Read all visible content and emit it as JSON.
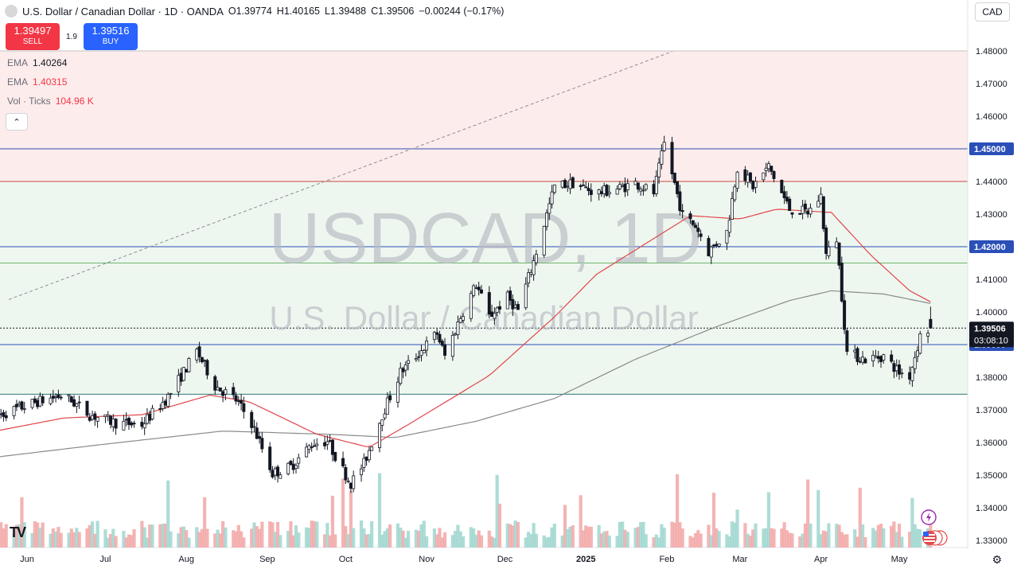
{
  "header": {
    "title": "U.S. Dollar / Canadian Dollar · 1D · OANDA",
    "open_label": "O",
    "open": "1.39774",
    "high_label": "H",
    "high": "1.40165",
    "low_label": "L",
    "low": "1.39488",
    "close_label": "C",
    "close": "1.39506",
    "change": "−0.00244 (−0.17%)",
    "currency": "CAD"
  },
  "trade": {
    "sell_price": "1.39497",
    "sell_label": "SELL",
    "spread": "1.9",
    "buy_price": "1.39516",
    "buy_label": "BUY"
  },
  "indicators": [
    {
      "name": "EMA",
      "value": "1.40264"
    },
    {
      "name": "EMA",
      "value": "1.40315"
    },
    {
      "name": "Vol · Ticks",
      "value": "104.96 K"
    }
  ],
  "watermark": {
    "line1": "USDCAD, 1D",
    "line2": "U.S. Dollar / Canadian Dollar"
  },
  "countdown": "03:08:10",
  "colors": {
    "up": "#131722",
    "down": "#131722",
    "ema_short": "#e0464a",
    "ema_long": "#8a8a8a",
    "level_blue": "#2a4fb8",
    "level_red": "#c74a43",
    "level_green": "#6fb36f",
    "zone_red": "#fdecec",
    "zone_green": "#eef7ef",
    "zone_teal": "#eaf5f3",
    "vol_up": "#9fd6cf",
    "vol_down": "#f2a7a7"
  },
  "chart_data": {
    "type": "candlestick",
    "symbol": "USDCAD",
    "timeframe": "1D",
    "y_axis_ticks": [
      "1.48000",
      "1.47000",
      "1.46000",
      "1.45000",
      "1.44000",
      "1.43000",
      "1.42000",
      "1.41000",
      "1.40000",
      "1.39000",
      "1.38000",
      "1.37000",
      "1.36000",
      "1.35000",
      "1.34000",
      "1.33000"
    ],
    "ylim": [
      1.3295,
      1.4818
    ],
    "x_axis_labels": [
      "Jun",
      "Jul",
      "Aug",
      "Sep",
      "Oct",
      "Nov",
      "Dec",
      "2025",
      "Feb",
      "Mar",
      "Apr",
      "May"
    ],
    "levels": [
      {
        "value": 1.45,
        "label": "1.45000",
        "color": "level_blue"
      },
      {
        "value": 1.44,
        "label": "",
        "color": "level_red"
      },
      {
        "value": 1.42,
        "label": "1.42000",
        "color": "level_blue"
      },
      {
        "value": 1.415,
        "label": "",
        "color": "level_green"
      },
      {
        "value": 1.39,
        "label": "1.39000",
        "color": "level_blue"
      },
      {
        "value": 1.3748,
        "label": "",
        "color": "level_teal"
      }
    ],
    "current_price": {
      "value": 1.39506,
      "label": "1.39506"
    },
    "zones": [
      {
        "from": 1.44,
        "to": 1.48,
        "color": "zone_red"
      },
      {
        "from": 1.3748,
        "to": 1.44,
        "color": "zone_green"
      }
    ],
    "trendline": {
      "from": {
        "x": "2024-05-25",
        "y": 1.4038
      },
      "to": {
        "x": "2025-02-03",
        "y": 1.4798
      }
    },
    "anchors": [
      {
        "x": "2024-05-20",
        "y": 1.368
      },
      {
        "x": "2024-06-05",
        "y": 1.3725
      },
      {
        "x": "2024-06-15",
        "y": 1.3745
      },
      {
        "x": "2024-06-25",
        "y": 1.3685
      },
      {
        "x": "2024-07-05",
        "y": 1.366
      },
      {
        "x": "2024-07-15",
        "y": 1.3655
      },
      {
        "x": "2024-07-25",
        "y": 1.374
      },
      {
        "x": "2024-08-05",
        "y": 1.388
      },
      {
        "x": "2024-08-12",
        "y": 1.3775
      },
      {
        "x": "2024-08-20",
        "y": 1.373
      },
      {
        "x": "2024-08-26",
        "y": 1.366
      },
      {
        "x": "2024-09-03",
        "y": 1.3505
      },
      {
        "x": "2024-09-10",
        "y": 1.3525
      },
      {
        "x": "2024-09-18",
        "y": 1.3595
      },
      {
        "x": "2024-09-24",
        "y": 1.3605
      },
      {
        "x": "2024-09-30",
        "y": 1.3515
      },
      {
        "x": "2024-10-03",
        "y": 1.3475
      },
      {
        "x": "2024-10-08",
        "y": 1.3535
      },
      {
        "x": "2024-10-15",
        "y": 1.3685
      },
      {
        "x": "2024-10-22",
        "y": 1.3815
      },
      {
        "x": "2024-10-28",
        "y": 1.3865
      },
      {
        "x": "2024-11-05",
        "y": 1.3935
      },
      {
        "x": "2024-11-08",
        "y": 1.3865
      },
      {
        "x": "2024-11-14",
        "y": 1.3985
      },
      {
        "x": "2024-11-20",
        "y": 1.4085
      },
      {
        "x": "2024-11-25",
        "y": 1.3985
      },
      {
        "x": "2024-12-02",
        "y": 1.4045
      },
      {
        "x": "2024-12-06",
        "y": 1.4005
      },
      {
        "x": "2024-12-12",
        "y": 1.4155
      },
      {
        "x": "2024-12-20",
        "y": 1.4385
      },
      {
        "x": "2024-12-27",
        "y": 1.4395
      },
      {
        "x": "2025-01-05",
        "y": 1.4365
      },
      {
        "x": "2025-01-12",
        "y": 1.4375
      },
      {
        "x": "2025-01-20",
        "y": 1.4395
      },
      {
        "x": "2025-01-27",
        "y": 1.4365
      },
      {
        "x": "2025-01-31",
        "y": 1.4515
      },
      {
        "x": "2025-02-03",
        "y": 1.4425
      },
      {
        "x": "2025-02-07",
        "y": 1.4295
      },
      {
        "x": "2025-02-12",
        "y": 1.4265
      },
      {
        "x": "2025-02-17",
        "y": 1.4185
      },
      {
        "x": "2025-02-24",
        "y": 1.4245
      },
      {
        "x": "2025-02-28",
        "y": 1.4445
      },
      {
        "x": "2025-03-06",
        "y": 1.4385
      },
      {
        "x": "2025-03-12",
        "y": 1.4445
      },
      {
        "x": "2025-03-20",
        "y": 1.4315
      },
      {
        "x": "2025-03-27",
        "y": 1.4305
      },
      {
        "x": "2025-04-01",
        "y": 1.4355
      },
      {
        "x": "2025-04-03",
        "y": 1.4175
      },
      {
        "x": "2025-04-07",
        "y": 1.4225
      },
      {
        "x": "2025-04-11",
        "y": 1.3875
      },
      {
        "x": "2025-04-18",
        "y": 1.3855
      },
      {
        "x": "2025-04-25",
        "y": 1.3865
      },
      {
        "x": "2025-05-01",
        "y": 1.3815
      },
      {
        "x": "2025-05-05",
        "y": 1.3805
      },
      {
        "x": "2025-05-09",
        "y": 1.3925
      },
      {
        "x": "2025-05-13",
        "y": 1.3951
      }
    ],
    "ema_short_anchors": [
      {
        "x": "2024-05-20",
        "y": 1.3635
      },
      {
        "x": "2024-06-15",
        "y": 1.3675
      },
      {
        "x": "2024-07-15",
        "y": 1.3685
      },
      {
        "x": "2024-08-10",
        "y": 1.3745
      },
      {
        "x": "2024-08-25",
        "y": 1.3725
      },
      {
        "x": "2024-09-20",
        "y": 1.3625
      },
      {
        "x": "2024-10-10",
        "y": 1.3585
      },
      {
        "x": "2024-10-25",
        "y": 1.3655
      },
      {
        "x": "2024-11-25",
        "y": 1.3805
      },
      {
        "x": "2024-12-20",
        "y": 1.3985
      },
      {
        "x": "2025-01-05",
        "y": 1.4115
      },
      {
        "x": "2025-01-25",
        "y": 1.4215
      },
      {
        "x": "2025-02-10",
        "y": 1.4295
      },
      {
        "x": "2025-03-01",
        "y": 1.4285
      },
      {
        "x": "2025-03-15",
        "y": 1.4315
      },
      {
        "x": "2025-04-05",
        "y": 1.4305
      },
      {
        "x": "2025-04-20",
        "y": 1.4175
      },
      {
        "x": "2025-05-05",
        "y": 1.4065
      },
      {
        "x": "2025-05-13",
        "y": 1.4031
      }
    ],
    "ema_long_anchors": [
      {
        "x": "2024-05-20",
        "y": 1.3555
      },
      {
        "x": "2024-07-01",
        "y": 1.3595
      },
      {
        "x": "2024-08-15",
        "y": 1.3635
      },
      {
        "x": "2024-09-25",
        "y": 1.3625
      },
      {
        "x": "2024-10-20",
        "y": 1.3615
      },
      {
        "x": "2024-11-20",
        "y": 1.3665
      },
      {
        "x": "2024-12-20",
        "y": 1.3735
      },
      {
        "x": "2025-01-20",
        "y": 1.3855
      },
      {
        "x": "2025-02-20",
        "y": 1.3955
      },
      {
        "x": "2025-03-20",
        "y": 1.4035
      },
      {
        "x": "2025-04-05",
        "y": 1.4065
      },
      {
        "x": "2025-04-25",
        "y": 1.4055
      },
      {
        "x": "2025-05-13",
        "y": 1.4026
      }
    ]
  }
}
